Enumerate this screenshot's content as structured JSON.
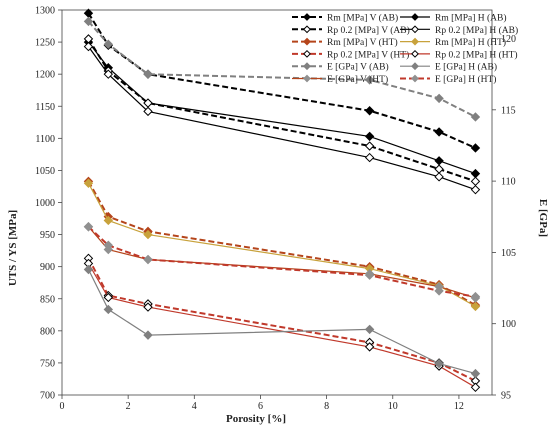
{
  "chart_data": {
    "type": "line",
    "title": "",
    "xlabel": "Porosity [%]",
    "ylabel_left": "UTS / YS [MPa]",
    "ylabel_right": "E [GPa]",
    "xlim": [
      0,
      13
    ],
    "xticks": [
      0,
      2,
      4,
      6,
      8,
      10,
      12
    ],
    "ylim_left": [
      700,
      1300
    ],
    "yticks_left": [
      700,
      750,
      800,
      850,
      900,
      950,
      1000,
      1050,
      1100,
      1150,
      1200,
      1250,
      1300
    ],
    "ylim_right": [
      95,
      122
    ],
    "yticks_right": [
      95,
      100,
      105,
      110,
      115,
      120
    ],
    "grid": false,
    "legend_position": "top-right",
    "series": [
      {
        "name": "Rm [MPa] V (AB)",
        "axis": "left",
        "color": "#000000",
        "dash": true,
        "marker": "diamond-filled",
        "x": [
          0.8,
          1.4,
          2.6,
          9.3,
          11.4,
          12.5
        ],
        "y": [
          1295,
          1245,
          1200,
          1143,
          1110,
          1085
        ]
      },
      {
        "name": "Rm [MPa] H (AB)",
        "axis": "left",
        "color": "#000000",
        "dash": false,
        "marker": "diamond-filled",
        "x": [
          0.8,
          1.4,
          2.6,
          9.3,
          11.4,
          12.5
        ],
        "y": [
          1250,
          1210,
          1155,
          1103,
          1065,
          1045
        ]
      },
      {
        "name": "Rp 0.2 [MPa] V (AB)",
        "axis": "left",
        "color": "#000000",
        "dash": true,
        "marker": "diamond-open",
        "x": [
          0.8,
          1.4,
          2.6,
          9.3,
          11.4,
          12.5
        ],
        "y": [
          1255,
          1205,
          1155,
          1088,
          1052,
          1033
        ]
      },
      {
        "name": "Rp 0.2 [MPa] H (AB)",
        "axis": "left",
        "color": "#000000",
        "dash": false,
        "marker": "diamond-open",
        "x": [
          0.8,
          1.4,
          2.6,
          9.3,
          11.4,
          12.5
        ],
        "y": [
          1243,
          1200,
          1142,
          1070,
          1040,
          1020
        ]
      },
      {
        "name": "Rm [MPa] V (HT)",
        "axis": "left",
        "color": "#b5451b",
        "dash": true,
        "marker": "diamond-filled",
        "x": [
          0.8,
          1.4,
          2.6,
          9.3,
          11.4,
          12.5
        ],
        "y": [
          1033,
          978,
          955,
          900,
          872,
          840
        ]
      },
      {
        "name": "Rm [MPa] H (HT)",
        "axis": "left",
        "color": "#c8a23c",
        "dash": false,
        "marker": "diamond-filled",
        "x": [
          0.8,
          1.4,
          2.6,
          9.3,
          11.4,
          12.5
        ],
        "y": [
          1030,
          972,
          950,
          897,
          870,
          838
        ]
      },
      {
        "name": "Rp 0.2 [MPa] V (HT)",
        "axis": "left",
        "color": "#c0392b",
        "dash": true,
        "marker": "diamond-open",
        "x": [
          0.8,
          1.4,
          2.6,
          9.3,
          11.4,
          12.5
        ],
        "y": [
          913,
          855,
          842,
          782,
          750,
          722
        ]
      },
      {
        "name": "Rp 0.2 [MPa] H (HT)",
        "axis": "left",
        "color": "#c0392b",
        "dash": false,
        "marker": "diamond-open",
        "x": [
          0.8,
          1.4,
          2.6,
          9.3,
          11.4,
          12.5
        ],
        "y": [
          905,
          852,
          837,
          775,
          745,
          712
        ]
      },
      {
        "name": "E [GPa] V (AB)",
        "axis": "right",
        "color": "#808080",
        "dash": true,
        "marker": "diamond-filled",
        "x": [
          0.8,
          1.4,
          2.6,
          9.3,
          11.4,
          12.5
        ],
        "y": [
          121.2,
          119.6,
          117.5,
          117.1,
          115.8,
          114.5
        ]
      },
      {
        "name": "E [GPa] H (AB)",
        "axis": "right",
        "color": "#808080",
        "dash": false,
        "marker": "diamond-filled",
        "x": [
          0.8,
          1.4,
          2.6,
          9.3,
          11.4,
          12.5
        ],
        "y": [
          103.8,
          101.0,
          99.2,
          99.6,
          97.2,
          96.5
        ]
      },
      {
        "name": "E [GPa] V (HT)",
        "axis": "right",
        "color": "#b5451b",
        "dash": false,
        "marker": "diamond-gray",
        "x": [
          0.8,
          1.4,
          2.6,
          9.3,
          11.4,
          12.5
        ],
        "y": [
          106.8,
          105.2,
          104.5,
          103.5,
          102.6,
          101.8
        ]
      },
      {
        "name": "E [GPa] H (HT)",
        "axis": "right",
        "color": "#c0392b",
        "dash": true,
        "marker": "diamond-gray",
        "x": [
          0.8,
          1.4,
          2.6,
          9.3,
          11.4,
          12.5
        ],
        "y": [
          106.8,
          105.5,
          104.5,
          103.4,
          102.3,
          101.9
        ]
      }
    ]
  }
}
